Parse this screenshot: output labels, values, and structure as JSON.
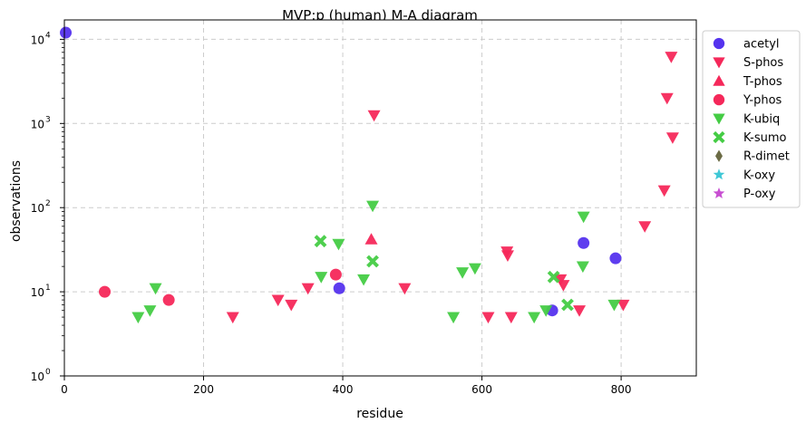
{
  "chart_data": {
    "type": "scatter",
    "title": "MVP:p (human) M-A diagram",
    "xlabel": "residue",
    "ylabel": "observations",
    "xlim": [
      0,
      908
    ],
    "ylim": [
      1,
      17000
    ],
    "yscale": "log",
    "grid": true,
    "legend_position": "outside-right",
    "x_ticks": [
      0,
      200,
      400,
      600,
      800
    ],
    "y_ticks": [
      {
        "value": 1,
        "label": "10",
        "exp": "0"
      },
      {
        "value": 10,
        "label": "10",
        "exp": "1"
      },
      {
        "value": 100,
        "label": "10",
        "exp": "2"
      },
      {
        "value": 1000,
        "label": "10",
        "exp": "3"
      },
      {
        "value": 10000,
        "label": "10",
        "exp": "4"
      }
    ],
    "series": [
      {
        "name": "acetyl",
        "marker": "circle",
        "color": "#5533ee",
        "points": [
          [
            2,
            12000
          ],
          [
            395,
            11
          ],
          [
            701,
            6
          ],
          [
            746,
            38
          ],
          [
            792,
            25
          ]
        ]
      },
      {
        "name": "S-phos",
        "marker": "triangle-down",
        "color": "#f5285a",
        "points": [
          [
            242,
            5
          ],
          [
            307,
            8
          ],
          [
            326,
            7
          ],
          [
            350,
            11
          ],
          [
            445,
            1250
          ],
          [
            489,
            11
          ],
          [
            636,
            30
          ],
          [
            637,
            27
          ],
          [
            609,
            5
          ],
          [
            642,
            5
          ],
          [
            713,
            14
          ],
          [
            717,
            12
          ],
          [
            740,
            6
          ],
          [
            803,
            7
          ],
          [
            834,
            60
          ],
          [
            862,
            160
          ],
          [
            866,
            2000
          ],
          [
            872,
            6200
          ],
          [
            874,
            680
          ]
        ]
      },
      {
        "name": "T-phos",
        "marker": "triangle-up",
        "color": "#f5285a",
        "points": [
          [
            441,
            42
          ]
        ]
      },
      {
        "name": "Y-phos",
        "marker": "circle",
        "color": "#f5285a",
        "points": [
          [
            58,
            10
          ],
          [
            150,
            8
          ],
          [
            390,
            16
          ]
        ]
      },
      {
        "name": "K-ubiq",
        "marker": "triangle-down",
        "color": "#44cc44",
        "points": [
          [
            106,
            5
          ],
          [
            123,
            6
          ],
          [
            131,
            11
          ],
          [
            369,
            15
          ],
          [
            394,
            37
          ],
          [
            430,
            14
          ],
          [
            443,
            105
          ],
          [
            559,
            5
          ],
          [
            572,
            17
          ],
          [
            590,
            19
          ],
          [
            675,
            5
          ],
          [
            692,
            6
          ],
          [
            746,
            78
          ],
          [
            745,
            20
          ],
          [
            790,
            7
          ]
        ]
      },
      {
        "name": "K-sumo",
        "marker": "x",
        "color": "#44cc44",
        "points": [
          [
            368,
            40
          ],
          [
            443,
            23
          ],
          [
            703,
            15
          ],
          [
            723,
            7
          ]
        ]
      },
      {
        "name": "R-dimet",
        "marker": "diamond",
        "color": "#6b6b45",
        "points": []
      },
      {
        "name": "K-oxy",
        "marker": "star",
        "color": "#3fc8d6",
        "points": []
      },
      {
        "name": "P-oxy",
        "marker": "star",
        "color": "#c84fd2",
        "points": []
      }
    ]
  }
}
